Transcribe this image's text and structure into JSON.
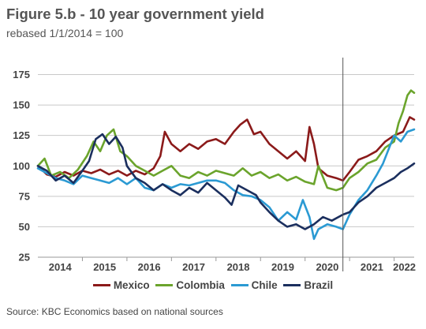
{
  "title": "Figure 5.b - 10 year government yield",
  "subtitle": "rebased 1/1/2014 = 100",
  "source": "Source: KBC Economics based on national sources",
  "chart_data": {
    "type": "line",
    "ylim": [
      25,
      187
    ],
    "yticks": [
      25,
      50,
      75,
      100,
      125,
      150,
      175
    ],
    "xlim": [
      2014.0,
      2022.45
    ],
    "xtick_labels": [
      "2014",
      "2015",
      "2016",
      "2017",
      "2018",
      "2019",
      "2020",
      "2021",
      "2022"
    ],
    "grid": "horizontal",
    "legend_position": "bottom",
    "vertical_marker_x": 2020.85,
    "series": [
      {
        "name": "Mexico",
        "color": "#8b1a1a",
        "x": [
          2014.0,
          2014.2,
          2014.4,
          2014.6,
          2014.8,
          2015.0,
          2015.2,
          2015.4,
          2015.6,
          2015.8,
          2016.0,
          2016.2,
          2016.4,
          2016.6,
          2016.75,
          2016.85,
          2017.0,
          2017.2,
          2017.4,
          2017.6,
          2017.8,
          2018.0,
          2018.2,
          2018.4,
          2018.55,
          2018.7,
          2018.85,
          2019.0,
          2019.2,
          2019.4,
          2019.6,
          2019.8,
          2020.0,
          2020.1,
          2020.2,
          2020.3,
          2020.5,
          2020.7,
          2020.85,
          2021.0,
          2021.2,
          2021.4,
          2021.6,
          2021.8,
          2022.0,
          2022.2,
          2022.35,
          2022.45
        ],
        "values": [
          100,
          93,
          91,
          95,
          92,
          96,
          94,
          97,
          93,
          96,
          92,
          96,
          93,
          98,
          108,
          128,
          118,
          112,
          118,
          114,
          120,
          122,
          118,
          128,
          134,
          138,
          126,
          128,
          118,
          112,
          106,
          112,
          104,
          132,
          118,
          98,
          92,
          90,
          88,
          95,
          105,
          108,
          112,
          120,
          125,
          128,
          140,
          138
        ]
      },
      {
        "name": "Colombia",
        "color": "#6ba42c",
        "x": [
          2014.0,
          2014.15,
          2014.3,
          2014.5,
          2014.7,
          2014.9,
          2015.1,
          2015.25,
          2015.4,
          2015.55,
          2015.7,
          2015.85,
          2016.0,
          2016.2,
          2016.4,
          2016.6,
          2016.8,
          2017.0,
          2017.2,
          2017.4,
          2017.6,
          2017.8,
          2018.0,
          2018.2,
          2018.4,
          2018.6,
          2018.8,
          2019.0,
          2019.2,
          2019.4,
          2019.6,
          2019.8,
          2020.0,
          2020.2,
          2020.3,
          2020.5,
          2020.7,
          2020.85,
          2021.0,
          2021.2,
          2021.4,
          2021.6,
          2021.8,
          2022.0,
          2022.1,
          2022.2,
          2022.3,
          2022.38,
          2022.45
        ],
        "values": [
          100,
          106,
          92,
          95,
          90,
          97,
          108,
          120,
          112,
          125,
          130,
          112,
          108,
          100,
          96,
          92,
          96,
          100,
          92,
          90,
          95,
          92,
          96,
          94,
          92,
          98,
          92,
          95,
          90,
          93,
          88,
          91,
          87,
          85,
          100,
          82,
          80,
          82,
          90,
          95,
          102,
          105,
          115,
          120,
          135,
          145,
          158,
          162,
          160
        ]
      },
      {
        "name": "Chile",
        "color": "#2b9ad3",
        "x": [
          2014.0,
          2014.2,
          2014.4,
          2014.6,
          2014.8,
          2015.0,
          2015.2,
          2015.4,
          2015.6,
          2015.8,
          2016.0,
          2016.2,
          2016.4,
          2016.6,
          2016.8,
          2017.0,
          2017.2,
          2017.4,
          2017.6,
          2017.8,
          2018.0,
          2018.2,
          2018.4,
          2018.6,
          2018.8,
          2019.0,
          2019.2,
          2019.4,
          2019.6,
          2019.8,
          2019.95,
          2020.1,
          2020.2,
          2020.3,
          2020.5,
          2020.7,
          2020.85,
          2021.0,
          2021.2,
          2021.4,
          2021.6,
          2021.75,
          2021.9,
          2022.0,
          2022.15,
          2022.3,
          2022.45
        ],
        "values": [
          98,
          94,
          90,
          88,
          85,
          92,
          90,
          88,
          86,
          90,
          85,
          90,
          82,
          80,
          85,
          82,
          85,
          84,
          86,
          88,
          88,
          86,
          80,
          76,
          75,
          72,
          66,
          55,
          62,
          56,
          72,
          58,
          40,
          48,
          52,
          50,
          48,
          60,
          72,
          80,
          92,
          102,
          116,
          125,
          120,
          128,
          130
        ]
      },
      {
        "name": "Brazil",
        "color": "#1b2f5e",
        "x": [
          2014.0,
          2014.2,
          2014.4,
          2014.6,
          2014.8,
          2015.0,
          2015.15,
          2015.3,
          2015.45,
          2015.6,
          2015.75,
          2015.9,
          2016.0,
          2016.2,
          2016.4,
          2016.6,
          2016.8,
          2017.0,
          2017.2,
          2017.4,
          2017.6,
          2017.8,
          2018.0,
          2018.2,
          2018.35,
          2018.5,
          2018.7,
          2018.9,
          2019.0,
          2019.2,
          2019.4,
          2019.6,
          2019.8,
          2020.0,
          2020.2,
          2020.4,
          2020.6,
          2020.85,
          2021.0,
          2021.2,
          2021.4,
          2021.6,
          2021.8,
          2022.0,
          2022.15,
          2022.3,
          2022.45
        ],
        "values": [
          100,
          96,
          88,
          92,
          86,
          96,
          104,
          122,
          126,
          118,
          124,
          115,
          100,
          90,
          86,
          80,
          85,
          80,
          76,
          82,
          78,
          86,
          80,
          74,
          68,
          84,
          80,
          76,
          70,
          62,
          55,
          50,
          52,
          48,
          52,
          58,
          55,
          60,
          62,
          70,
          75,
          82,
          86,
          90,
          95,
          98,
          102
        ]
      }
    ]
  }
}
